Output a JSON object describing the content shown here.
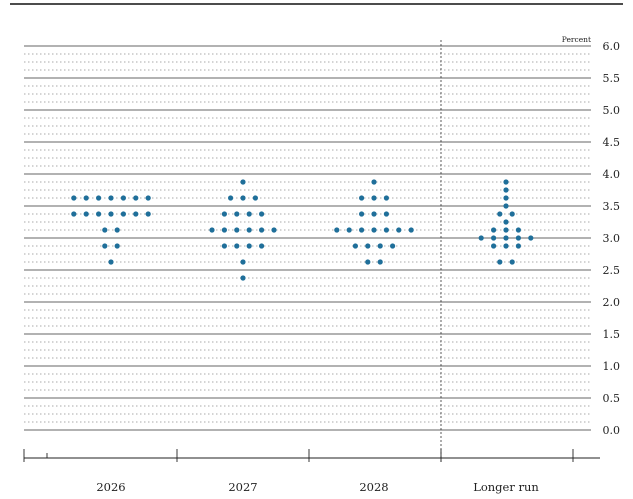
{
  "chart_data": {
    "type": "scatter",
    "unit_label": "Percent",
    "categories": [
      "2026",
      "2027",
      "2028",
      "Longer run"
    ],
    "ylim": [
      0,
      6
    ],
    "yticks": [
      "0.0",
      "0.5",
      "1.0",
      "1.5",
      "2.0",
      "2.5",
      "3.0",
      "3.5",
      "4.0",
      "4.5",
      "5.0",
      "5.5",
      "6.0"
    ],
    "grid": true,
    "longer_run_divider": true,
    "dot_color": "#1f6f9a",
    "points": [
      {
        "category": "2026",
        "y": 3.625,
        "count": 7
      },
      {
        "category": "2026",
        "y": 3.375,
        "count": 7
      },
      {
        "category": "2026",
        "y": 3.125,
        "count": 2
      },
      {
        "category": "2026",
        "y": 2.875,
        "count": 2
      },
      {
        "category": "2026",
        "y": 2.625,
        "count": 1
      },
      {
        "category": "2027",
        "y": 3.875,
        "count": 1
      },
      {
        "category": "2027",
        "y": 3.625,
        "count": 3
      },
      {
        "category": "2027",
        "y": 3.375,
        "count": 4
      },
      {
        "category": "2027",
        "y": 3.125,
        "count": 6
      },
      {
        "category": "2027",
        "y": 2.875,
        "count": 4
      },
      {
        "category": "2027",
        "y": 2.625,
        "count": 1
      },
      {
        "category": "2027",
        "y": 2.375,
        "count": 1
      },
      {
        "category": "2028",
        "y": 3.875,
        "count": 1
      },
      {
        "category": "2028",
        "y": 3.625,
        "count": 3
      },
      {
        "category": "2028",
        "y": 3.375,
        "count": 3
      },
      {
        "category": "2028",
        "y": 3.125,
        "count": 7
      },
      {
        "category": "2028",
        "y": 2.875,
        "count": 4
      },
      {
        "category": "2028",
        "y": 2.625,
        "count": 2
      },
      {
        "category": "Longer run",
        "y": 3.875,
        "count": 1
      },
      {
        "category": "Longer run",
        "y": 3.75,
        "count": 1
      },
      {
        "category": "Longer run",
        "y": 3.625,
        "count": 1
      },
      {
        "category": "Longer run",
        "y": 3.5,
        "count": 1
      },
      {
        "category": "Longer run",
        "y": 3.375,
        "count": 2
      },
      {
        "category": "Longer run",
        "y": 3.25,
        "count": 1
      },
      {
        "category": "Longer run",
        "y": 3.125,
        "count": 3
      },
      {
        "category": "Longer run",
        "y": 3.0,
        "count": 5
      },
      {
        "category": "Longer run",
        "y": 2.875,
        "count": 3
      },
      {
        "category": "Longer run",
        "y": 2.625,
        "count": 2
      }
    ]
  }
}
